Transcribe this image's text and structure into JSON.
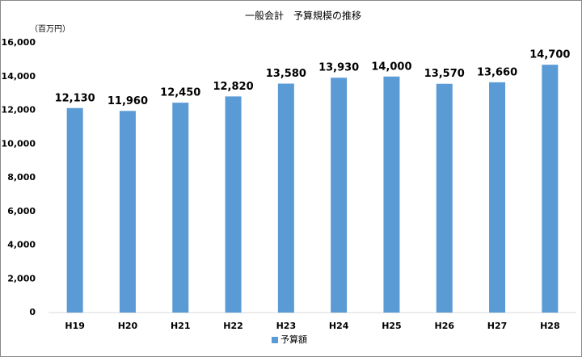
{
  "chart_data": {
    "type": "bar",
    "title": "一般会計　予算規模の推移",
    "y_label": "（百万円）",
    "categories": [
      "H19",
      "H20",
      "H21",
      "H22",
      "H23",
      "H24",
      "H25",
      "H26",
      "H27",
      "H28"
    ],
    "series": [
      {
        "name": "予算額",
        "color": "#5b9bd5",
        "values": [
          12130,
          11960,
          12450,
          12820,
          13580,
          13930,
          14000,
          13570,
          13660,
          14700
        ],
        "value_labels": [
          "12,130",
          "11,960",
          "12,450",
          "12,820",
          "13,580",
          "13,930",
          "14,000",
          "13,570",
          "13,660",
          "14,700"
        ]
      }
    ],
    "ylim": [
      0,
      16000
    ],
    "yticks": [
      0,
      {
        "value": 2000,
        "label": "2,000"
      },
      {
        "value": 4000,
        "label": "4,000"
      },
      {
        "value": 6000,
        "label": "6,000"
      },
      {
        "value": 8000,
        "label": "8,000"
      },
      {
        "value": 10000,
        "label": "10,000"
      },
      {
        "value": 12000,
        "label": "12,000"
      },
      {
        "value": 14000,
        "label": "14,000"
      },
      {
        "value": 16000,
        "label": "16,000"
      }
    ],
    "grid": false,
    "legend": "bottom"
  }
}
